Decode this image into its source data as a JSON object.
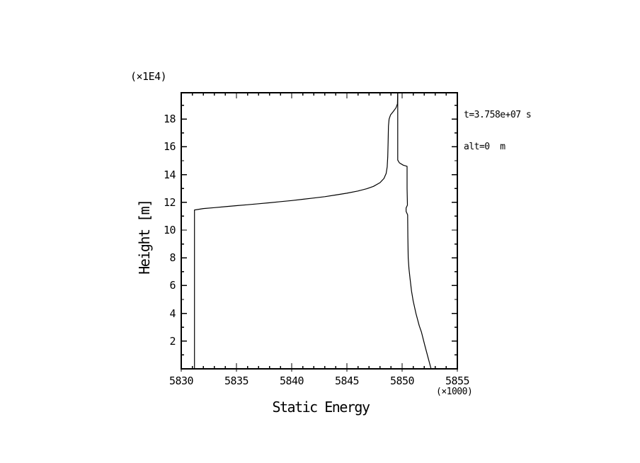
{
  "page": {
    "background": "#ffffff",
    "ink": "#000000"
  },
  "chart_data": {
    "type": "line",
    "title": "",
    "xlabel": "Static Energy",
    "ylabel": "Height [m]",
    "x_unit_note": "(×1000)",
    "y_unit_note": "(×1E4)",
    "annotation_lines": [
      "t=3.758e+07 s",
      "alt=0  m"
    ],
    "xlim": [
      5830,
      5855
    ],
    "ylim": [
      0,
      19.9
    ],
    "x_major_ticks": [
      5830,
      5835,
      5840,
      5845,
      5850,
      5855
    ],
    "x_tick_labels": [
      "5830",
      "5835",
      "5840",
      "5845",
      "5850",
      "5855"
    ],
    "x_minor_tick_step": 1,
    "y_major_ticks": [
      2,
      4,
      6,
      8,
      10,
      12,
      14,
      16,
      18
    ],
    "y_tick_labels": [
      "2",
      "4",
      "6",
      "8",
      "10",
      "12",
      "14",
      "16",
      "18"
    ],
    "y_minor_tick_step": 1,
    "grid": false,
    "legend": null,
    "line_color": "#000000",
    "series": [
      {
        "name": "left-profile",
        "points": [
          [
            5831.2,
            0.0
          ],
          [
            5831.2,
            11.45
          ],
          [
            5832,
            11.55
          ],
          [
            5833,
            11.62
          ],
          [
            5834,
            11.69
          ],
          [
            5835,
            11.76
          ],
          [
            5836,
            11.83
          ],
          [
            5837,
            11.9
          ],
          [
            5838,
            11.97
          ],
          [
            5839,
            12.05
          ],
          [
            5840,
            12.13
          ],
          [
            5841,
            12.22
          ],
          [
            5842,
            12.31
          ],
          [
            5843,
            12.41
          ],
          [
            5844,
            12.53
          ],
          [
            5845,
            12.66
          ],
          [
            5846,
            12.82
          ],
          [
            5846.8,
            12.98
          ],
          [
            5847.4,
            13.15
          ],
          [
            5848.0,
            13.42
          ],
          [
            5848.35,
            13.72
          ],
          [
            5848.55,
            14.08
          ],
          [
            5848.65,
            14.55
          ],
          [
            5848.7,
            15.3
          ],
          [
            5848.73,
            16.3
          ],
          [
            5848.76,
            17.5
          ],
          [
            5848.82,
            18.0
          ],
          [
            5848.95,
            18.3
          ],
          [
            5849.2,
            18.55
          ],
          [
            5849.45,
            18.82
          ],
          [
            5849.58,
            19.1
          ],
          [
            5849.6,
            19.9
          ]
        ]
      },
      {
        "name": "right-profile",
        "points": [
          [
            5849.6,
            19.9
          ],
          [
            5849.6,
            15.05
          ],
          [
            5849.75,
            14.85
          ],
          [
            5850.1,
            14.68
          ],
          [
            5850.45,
            14.6
          ],
          [
            5850.45,
            13.0
          ],
          [
            5850.48,
            11.8
          ],
          [
            5850.36,
            11.6
          ],
          [
            5850.36,
            11.35
          ],
          [
            5850.5,
            11.1
          ],
          [
            5850.52,
            9.5
          ],
          [
            5850.55,
            8.0
          ],
          [
            5850.62,
            7.2
          ],
          [
            5850.72,
            6.5
          ],
          [
            5850.85,
            5.6
          ],
          [
            5851.0,
            4.9
          ],
          [
            5851.25,
            4.0
          ],
          [
            5851.55,
            3.1
          ],
          [
            5851.75,
            2.65
          ],
          [
            5852.05,
            1.7
          ],
          [
            5852.35,
            0.8
          ],
          [
            5852.62,
            0.0
          ]
        ]
      }
    ]
  }
}
